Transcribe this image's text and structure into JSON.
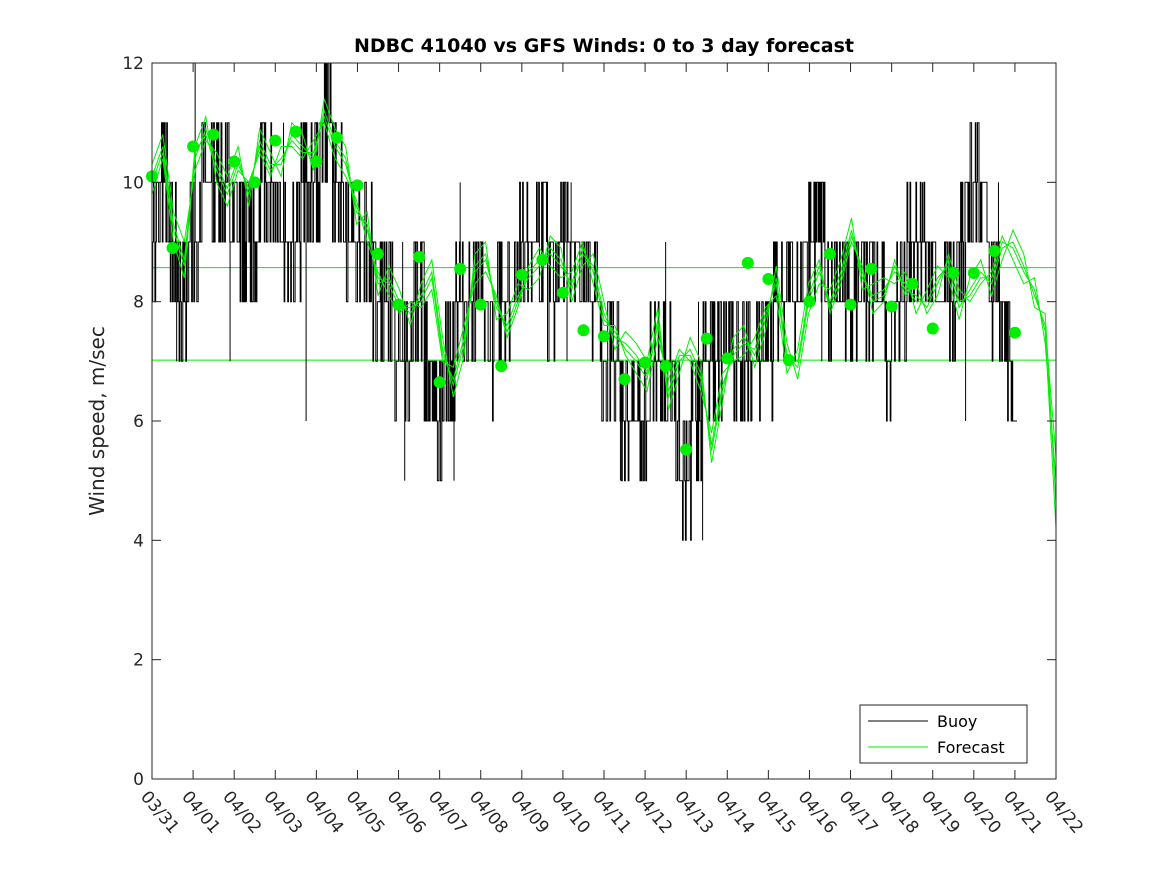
{
  "chart_data": {
    "type": "line",
    "title": "NDBC 41040 vs GFS Winds: 0 to 3 day forecast",
    "xlabel": "",
    "ylabel": "Wind speed, m/sec",
    "xlim": [
      0,
      22
    ],
    "ylim": [
      0,
      12
    ],
    "y_ticks": [
      0,
      2,
      4,
      6,
      8,
      10,
      12
    ],
    "x_tick_labels": [
      "03/31",
      "04/01",
      "04/02",
      "04/03",
      "04/04",
      "04/05",
      "04/06",
      "04/07",
      "04/08",
      "04/09",
      "04/10",
      "04/11",
      "04/12",
      "04/13",
      "04/14",
      "04/15",
      "04/16",
      "04/17",
      "04/18",
      "04/19",
      "04/20",
      "04/21",
      "04/22"
    ],
    "x_units": "days since 03/31",
    "legend": {
      "position": "bottom-right",
      "entries": [
        "Buoy",
        "Forecast"
      ]
    },
    "colors": {
      "buoy": "#000000",
      "forecast": "#00ee00",
      "markers": "#00ee00",
      "axes": "#262626"
    },
    "reference_lines": [
      8.57,
      7.02
    ],
    "buoy": {
      "x": [
        0,
        0.25,
        0.5,
        0.75,
        1,
        1.25,
        1.5,
        1.75,
        2,
        2.25,
        2.5,
        2.75,
        3,
        3.25,
        3.5,
        3.75,
        4,
        4.25,
        4.5,
        4.75,
        5,
        5.25,
        5.5,
        5.75,
        6,
        6.25,
        6.5,
        6.75,
        7,
        7.25,
        7.5,
        7.75,
        8,
        8.25,
        8.5,
        8.75,
        9,
        9.25,
        9.5,
        9.75,
        10,
        10.25,
        10.5,
        10.75,
        11,
        11.25,
        11.5,
        11.75,
        12,
        12.25,
        12.5,
        12.75,
        13,
        13.25,
        13.5,
        13.75,
        14,
        14.25,
        14.5,
        14.75,
        15,
        15.25,
        15.5,
        15.75,
        16,
        16.25,
        16.5,
        16.75,
        17,
        17.25,
        17.5,
        17.75,
        18,
        18.25,
        18.5,
        18.75,
        19,
        19.25,
        19.5,
        19.75,
        20,
        20.25,
        20.5,
        20.75,
        21
      ],
      "y": [
        9,
        10,
        9,
        8,
        9,
        10,
        10,
        10,
        9,
        9,
        9,
        10,
        10,
        9,
        9,
        10,
        10,
        11,
        10,
        9,
        9,
        9,
        8,
        8,
        7,
        7,
        8,
        7,
        6,
        7,
        8,
        8,
        8,
        7,
        8,
        8,
        9,
        9,
        9,
        8,
        9,
        9,
        8,
        8,
        7,
        7,
        6,
        6,
        6,
        7,
        7,
        6,
        5,
        6,
        7,
        7,
        7,
        7,
        7,
        7,
        7,
        8,
        8,
        8,
        9,
        9,
        8,
        8,
        8,
        8,
        8,
        8,
        7,
        8,
        9,
        9,
        8,
        8,
        8,
        9,
        10,
        9,
        8,
        7,
        7
      ],
      "spikes_up": [
        [
          1.05,
          12
        ],
        [
          1.7,
          11
        ],
        [
          3.2,
          11
        ],
        [
          4.35,
          12
        ],
        [
          6.1,
          9
        ],
        [
          7.5,
          10
        ],
        [
          9.6,
          10
        ],
        [
          10.2,
          10
        ],
        [
          12.5,
          9
        ],
        [
          13.3,
          8
        ],
        [
          16.2,
          9
        ],
        [
          18.75,
          10
        ],
        [
          20.6,
          10
        ]
      ],
      "spikes_down": [
        [
          0.6,
          7
        ],
        [
          1.9,
          7
        ],
        [
          2.3,
          8
        ],
        [
          3.75,
          6
        ],
        [
          6.15,
          5
        ],
        [
          7.35,
          5
        ],
        [
          8.3,
          7
        ],
        [
          10.1,
          7
        ],
        [
          11.4,
          5
        ],
        [
          12.8,
          5
        ],
        [
          13.4,
          4
        ],
        [
          14.6,
          6
        ],
        [
          16.3,
          7
        ],
        [
          18.2,
          7
        ],
        [
          19.8,
          6
        ]
      ]
    },
    "forecast_series": [
      {
        "name": "Forecast",
        "values": [
          10.1,
          10.6,
          9.3,
          8.7,
          10.4,
          10.9,
          10.3,
          9.9,
          10.4,
          9.8,
          10.7,
          10.3,
          10.3,
          10.8,
          10.6,
          10.4,
          11.2,
          10.7,
          10.4,
          9.5,
          9.3,
          8.3,
          8.4,
          8.0,
          7.8,
          8.1,
          8.5,
          7.2,
          6.6,
          7.3,
          8.6,
          8.8,
          7.9,
          7.6,
          8.1,
          8.4,
          8.6,
          8.9,
          8.7,
          8.2,
          8.8,
          8.6,
          7.8,
          7.4,
          7.3,
          7.1,
          6.8,
          7.7,
          6.4,
          7.0,
          7.2,
          6.8,
          5.5,
          6.5,
          7.2,
          7.4,
          7.1,
          7.7,
          8.4,
          7.1,
          6.9,
          8.0,
          8.5,
          8.0,
          8.5,
          9.2,
          8.4,
          8.1,
          8.2,
          8.5,
          8.3,
          8.0,
          8.0,
          8.4,
          8.6,
          7.9,
          8.2,
          8.5,
          8.3,
          8.9,
          9.0,
          8.6,
          8.1,
          7.6,
          5.4
        ]
      },
      {
        "name": "Forecast",
        "values": [
          9.8,
          10.4,
          9.0,
          8.4,
          10.6,
          11.1,
          10.0,
          9.6,
          10.2,
          10.0,
          10.5,
          10.1,
          10.6,
          10.6,
          10.4,
          10.7,
          11.0,
          10.4,
          10.1,
          9.7,
          9.0,
          8.5,
          8.1,
          7.8,
          8.0,
          7.9,
          8.2,
          7.0,
          6.9,
          7.6,
          8.3,
          8.5,
          8.1,
          7.4,
          7.9,
          8.6,
          8.9,
          8.6,
          8.4,
          8.5,
          9.0,
          8.3,
          7.6,
          7.6,
          7.1,
          6.8,
          6.5,
          7.4,
          6.7,
          7.2,
          7.0,
          6.5,
          5.8,
          6.8,
          7.0,
          7.1,
          7.4,
          7.9,
          8.1,
          6.8,
          7.2,
          8.3,
          8.7,
          7.8,
          8.3,
          9.0,
          8.6,
          7.8,
          8.0,
          8.7,
          8.1,
          8.3,
          7.8,
          8.1,
          8.8,
          8.2,
          8.0,
          8.3,
          8.5,
          9.1,
          8.7,
          8.3,
          8.4,
          7.3,
          5.0
        ]
      },
      {
        "name": "Forecast",
        "values": [
          10.3,
          10.8,
          9.5,
          9.0,
          10.2,
          10.7,
          10.5,
          10.1,
          10.6,
          9.6,
          10.9,
          10.5,
          10.1,
          11.0,
          10.8,
          10.2,
          11.4,
          10.9,
          10.6,
          9.3,
          9.5,
          8.1,
          8.6,
          8.2,
          7.6,
          8.3,
          8.7,
          7.4,
          6.4,
          7.1,
          8.8,
          9.0,
          7.7,
          7.8,
          8.3,
          8.2,
          8.4,
          9.1,
          8.9,
          8.0,
          8.6,
          8.8,
          8.0,
          7.2,
          7.5,
          7.3,
          7.0,
          7.9,
          6.2,
          6.8,
          7.4,
          7.0,
          5.3,
          6.3,
          7.4,
          7.6,
          6.9,
          7.5,
          8.6,
          7.3,
          6.7,
          7.8,
          8.3,
          8.2,
          8.7,
          9.4,
          8.2,
          8.3,
          8.4,
          8.3,
          8.5,
          7.8,
          8.2,
          8.6,
          8.4,
          7.7,
          8.4,
          8.7,
          8.1,
          8.7,
          9.2,
          8.8,
          7.9,
          7.8,
          4.6
        ]
      },
      {
        "name": "Forecast",
        "values": [
          10.0,
          10.5,
          9.2,
          8.6,
          10.5,
          10.8,
          10.2,
          9.8,
          10.3,
          9.9,
          10.6,
          10.2,
          10.4,
          10.7,
          10.5,
          10.5,
          11.1,
          10.6,
          10.3,
          9.6,
          9.2,
          8.4,
          8.3,
          7.9,
          7.9,
          8.0,
          8.4,
          7.1,
          6.7,
          7.4,
          8.5,
          8.7,
          8.0,
          7.5,
          8.0,
          8.5,
          8.7,
          8.8,
          8.6,
          8.3,
          8.9,
          8.5,
          7.7,
          7.5,
          7.2,
          7.0,
          6.7,
          7.6,
          6.5,
          7.1,
          7.1,
          6.7,
          5.6,
          6.6,
          7.1,
          7.3,
          7.2,
          7.8,
          8.3,
          7.0,
          7.0,
          8.1,
          8.6,
          7.9,
          8.4,
          9.1,
          8.5,
          8.0,
          8.1,
          8.6,
          8.2,
          8.1,
          7.9,
          8.3,
          8.7,
          8.0,
          8.1,
          8.4,
          8.4,
          9.0,
          8.9,
          8.5,
          8.2,
          7.5,
          4.2
        ]
      }
    ],
    "forecast_markers": {
      "x": [
        0,
        0.5,
        1,
        1.5,
        2,
        2.5,
        3,
        3.5,
        4,
        4.5,
        5,
        5.5,
        6,
        6.5,
        7,
        7.5,
        8,
        8.5,
        9,
        9.5,
        10,
        10.5,
        11,
        11.5,
        12,
        12.5,
        13,
        13.5,
        14,
        14.5,
        15,
        15.5,
        16,
        16.5,
        17,
        17.5,
        18,
        18.5,
        19,
        19.5,
        20,
        20.5,
        21
      ],
      "y": [
        10.1,
        8.9,
        10.6,
        10.8,
        10.35,
        10.0,
        10.7,
        10.85,
        10.35,
        10.75,
        9.95,
        8.8,
        7.95,
        8.75,
        6.65,
        8.55,
        7.95,
        6.92,
        8.45,
        8.7,
        8.15,
        7.52,
        7.42,
        6.7,
        6.98,
        6.92,
        5.52,
        7.38,
        7.05,
        8.65,
        8.38,
        7.02,
        8.0,
        8.8,
        7.95,
        8.55,
        7.92,
        8.3,
        7.55,
        8.48,
        8.48,
        8.85,
        7.48
      ]
    }
  }
}
